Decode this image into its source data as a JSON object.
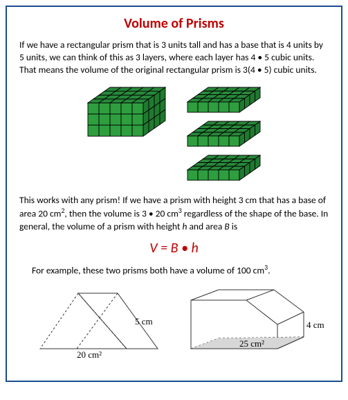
{
  "title": "Volume of Prisms",
  "para1": "If we have a rectangular prism that is 3 units tall and has a base that is 4 units by 5 units, we can think of this as 3 layers, where each layer has 4 • 5 cubic units. That means the volume of the original rectangular prism is 3(4 • 5) cubic units.",
  "para2_pre": "This works with any prism!  If we have a prism with height 3 cm that has a base of area 20 cm",
  "para2_sup1": "2",
  "para2_mid": ", then the volume is 3 • 20  cm",
  "para2_sup2": "3",
  "para2_post": " regardless of the shape of the base. In general, the volume of a prism with height ",
  "para2_h": "h",
  "para2_and": " and area ",
  "para2_B": "B",
  "para2_is": " is",
  "formula": "V = B • h",
  "example_pre": "For example, these two prisms both have a volume of 100 cm",
  "example_sup": "3",
  "example_post": ".",
  "cube_block": {
    "cols": 5,
    "rows": 4,
    "layers": 3,
    "face_color": "#2e9e3f",
    "top_color": "#27893a",
    "side_color": "#1f7a30",
    "stroke": "#000000",
    "cell": 16
  },
  "layer": {
    "cols": 5,
    "rows": 4,
    "face_color": "#2e9e3f",
    "top_color": "#27893a",
    "side_color": "#1f7a30",
    "stroke": "#000000",
    "cell": 15
  },
  "tri_prism": {
    "base_label": "20 cm²",
    "height_label": "5 cm",
    "stroke": "#333333",
    "shade": "#d7d7d7"
  },
  "trap_prism": {
    "base_label": "25 cm²",
    "height_label": "4 cm",
    "stroke": "#333333",
    "shade": "#d7d7d7"
  }
}
